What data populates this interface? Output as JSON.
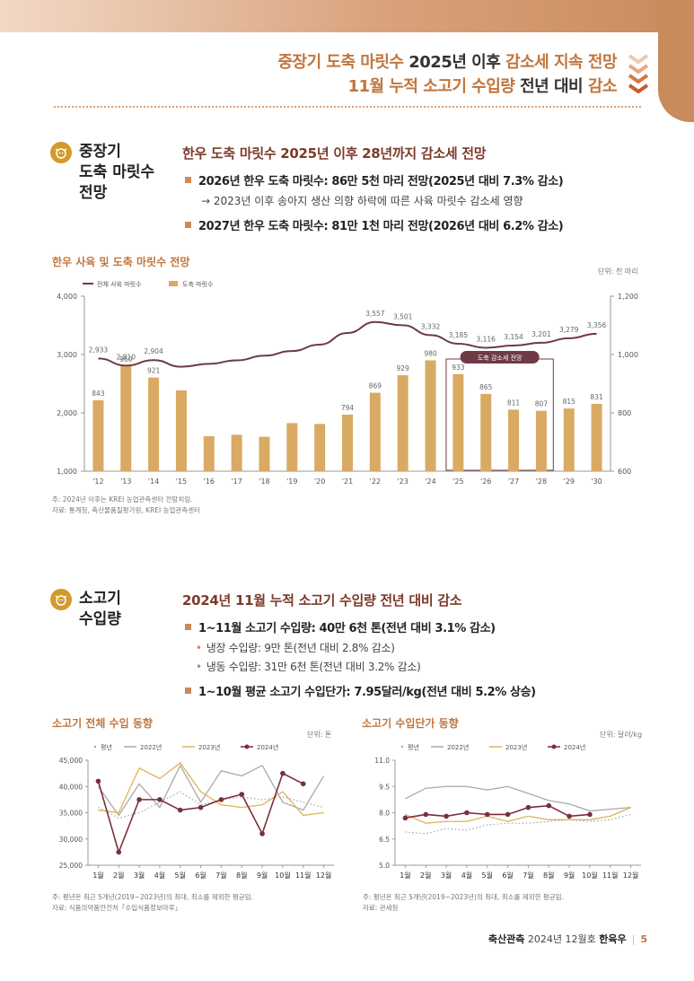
{
  "headline": {
    "line1_a": "중장기 도축 마릿수",
    "line1_b": " 2025년 이후 ",
    "line1_c": "감소세 지속 전망",
    "line2_a": "11월 누적 소고기 수입량",
    "line2_b": " 전년 대비 ",
    "line2_c": "감소"
  },
  "section1": {
    "title_lines": [
      "중장기",
      "도축 마릿수",
      "전망"
    ],
    "heading": "한우 도축 마릿수 2025년 이후 28년까지 감소세 전망",
    "bullet1": "2026년 한우 도축 마릿수: 86만 5천 마리 전망(2025년 대비 7.3% 감소)",
    "bullet1_sub": "→ 2023년 이후 송아지 생산 의향 하락에 따른 사육 마릿수 감소세 영향",
    "bullet2": "2027년 한우 도축 마릿수: 81만 1천 마리 전망(2026년 대비 6.2% 감소)"
  },
  "chart1": {
    "title": "한우 사육 및 도축 마릿수 전망",
    "unit": "단위: 천 마리",
    "legend_line": "전체 사육 마릿수",
    "legend_bar": "도축 마릿수",
    "annotation": "도축 감소세 전망",
    "note1": "주: 2024년 이후는 KREI 농업관측센터 전망치임.",
    "note2": "자료: 통계청, 축산물품질평가원, KREI 농업관측센터",
    "colors": {
      "bar": "#d9aa63",
      "line": "#6e3b45"
    }
  },
  "chart_data": [
    {
      "type": "bar",
      "title": "한우 사육 및 도축 마릿수 전망",
      "categories": [
        "'12",
        "'13",
        "'14",
        "'15",
        "'16",
        "'17",
        "'18",
        "'19",
        "'20",
        "'21",
        "'22",
        "'23",
        "'24",
        "'25",
        "'26",
        "'27",
        "'28",
        "'29",
        "'30"
      ],
      "series": [
        {
          "name": "전체 사육 마릿수",
          "kind": "line",
          "axis": "left",
          "values": [
            2933,
            2810,
            2904,
            2790,
            2840,
            2900,
            2980,
            3060,
            3170,
            3370,
            3557,
            3501,
            3332,
            3185,
            3116,
            3154,
            3201,
            3279,
            3356
          ],
          "labels": [
            "2,933",
            "2,810",
            "2,904",
            "",
            "",
            "",
            "",
            "",
            "",
            "",
            "3,557",
            "3,501",
            "3,332",
            "3,185",
            "3,116",
            "3,154",
            "3,201",
            "3,279",
            "3,356"
          ]
        },
        {
          "name": "도축 마릿수",
          "kind": "bar",
          "axis": "right",
          "values": [
            843,
            960,
            921,
            877,
            720,
            725,
            718,
            765,
            762,
            794,
            869,
            929,
            980,
            933,
            865,
            811,
            807,
            815,
            831
          ],
          "labels": [
            "843",
            "960",
            "921",
            "",
            "",
            "",
            "",
            "",
            "",
            "794",
            "869",
            "929",
            "980",
            "933",
            "865",
            "811",
            "807",
            "815",
            "831"
          ]
        }
      ],
      "ylim_left": [
        1000,
        4000
      ],
      "yticks_left": [
        "1,000",
        "2,000",
        "3,000",
        "4,000"
      ],
      "ylim_right": [
        600,
        1200
      ],
      "yticks_right": [
        "600",
        "800",
        "1,000",
        "1,200"
      ],
      "legend": "top-left"
    },
    {
      "type": "line",
      "title": "소고기 전체 수입 동향",
      "categories": [
        "1월",
        "2월",
        "3월",
        "4월",
        "5월",
        "6월",
        "7월",
        "8월",
        "9월",
        "10월",
        "11월",
        "12월"
      ],
      "series": [
        {
          "name": "평년",
          "style": "dotted",
          "color": "#9aa6b2",
          "values": [
            36000,
            34000,
            35000,
            37000,
            39000,
            36500,
            37500,
            38000,
            37500,
            38000,
            37000,
            36000
          ]
        },
        {
          "name": "2022년",
          "style": "solid",
          "color": "#a9a9a9",
          "values": [
            40000,
            34500,
            40500,
            36000,
            44000,
            37000,
            43000,
            42000,
            44000,
            37000,
            35500,
            42000
          ]
        },
        {
          "name": "2023년",
          "style": "solid",
          "color": "#e0b25a",
          "values": [
            35500,
            35000,
            43500,
            41500,
            44500,
            39000,
            36500,
            36000,
            36500,
            39000,
            34500,
            35000
          ]
        },
        {
          "name": "2024년",
          "style": "marker",
          "color": "#7a2f3b",
          "values": [
            41000,
            27500,
            37500,
            37500,
            35500,
            36000,
            37500,
            38500,
            31000,
            42500,
            40500,
            null
          ]
        }
      ],
      "ylim": [
        25000,
        45000
      ],
      "yticks": [
        "25,000",
        "30,000",
        "35,000",
        "40,000",
        "45,000"
      ],
      "legend": "top"
    },
    {
      "type": "line",
      "title": "소고기 수입단가 동향",
      "categories": [
        "1월",
        "2월",
        "3월",
        "4월",
        "5월",
        "6월",
        "7월",
        "8월",
        "9월",
        "10월",
        "11월",
        "12월"
      ],
      "series": [
        {
          "name": "평년",
          "style": "dotted",
          "color": "#9aa6b2",
          "values": [
            6.9,
            6.8,
            7.1,
            7.0,
            7.3,
            7.4,
            7.4,
            7.5,
            7.6,
            7.5,
            7.6,
            7.9
          ]
        },
        {
          "name": "2022년",
          "style": "solid",
          "color": "#a9a9a9",
          "values": [
            8.8,
            9.4,
            9.5,
            9.5,
            9.3,
            9.5,
            9.1,
            8.7,
            8.5,
            8.1,
            8.2,
            8.3
          ]
        },
        {
          "name": "2023년",
          "style": "solid",
          "color": "#e0b25a",
          "values": [
            7.9,
            7.4,
            7.5,
            7.5,
            7.8,
            7.5,
            7.8,
            7.6,
            7.6,
            7.6,
            7.8,
            8.3
          ]
        },
        {
          "name": "2024년",
          "style": "marker",
          "color": "#7a2f3b",
          "values": [
            7.7,
            7.9,
            7.8,
            8.0,
            7.9,
            7.9,
            8.3,
            8.4,
            7.8,
            7.9,
            null,
            null
          ]
        }
      ],
      "ylim": [
        5.0,
        11.0
      ],
      "yticks": [
        "5.0",
        "6.5",
        "8.0",
        "9.5",
        "11.0"
      ],
      "legend": "top"
    }
  ],
  "section2": {
    "title_lines": [
      "소고기",
      "수입량"
    ],
    "heading": "2024년 11월 누적 소고기 수입량 전년 대비 감소",
    "bullet1": "1~11월 소고기 수입량: 40만 6천 톤(전년 대비 3.1% 감소)",
    "sub1": "냉장 수입량: 9만 톤(전년 대비 2.8% 감소)",
    "sub2": "냉동 수입량: 31만 6천 톤(전년 대비 3.2% 감소)",
    "bullet2": "1~10월 평균 소고기 수입단가: 7.95달러/kg(전년 대비 5.2% 상승)"
  },
  "chart2": {
    "title": "소고기 전체 수입 동향",
    "unit": "단위: 톤",
    "note1": "주: 평년은 최근 5개년(2019~2023년)의 최대, 최소를 제외한 평균임.",
    "note2": "자료: 식품의약품안전처「수입식품정보마루」"
  },
  "chart3": {
    "title": "소고기 수입단가 동향",
    "unit": "단위: 달러/kg",
    "note1": "주: 평년은 최근 5개년(2019~2023년)의 최대, 최소를 제외한 평균임.",
    "note2": "자료: 관세청"
  },
  "footer": {
    "pub": "축산관측",
    "issue": " 2024년 12월호 ",
    "item": "한육우",
    "page": "5"
  }
}
